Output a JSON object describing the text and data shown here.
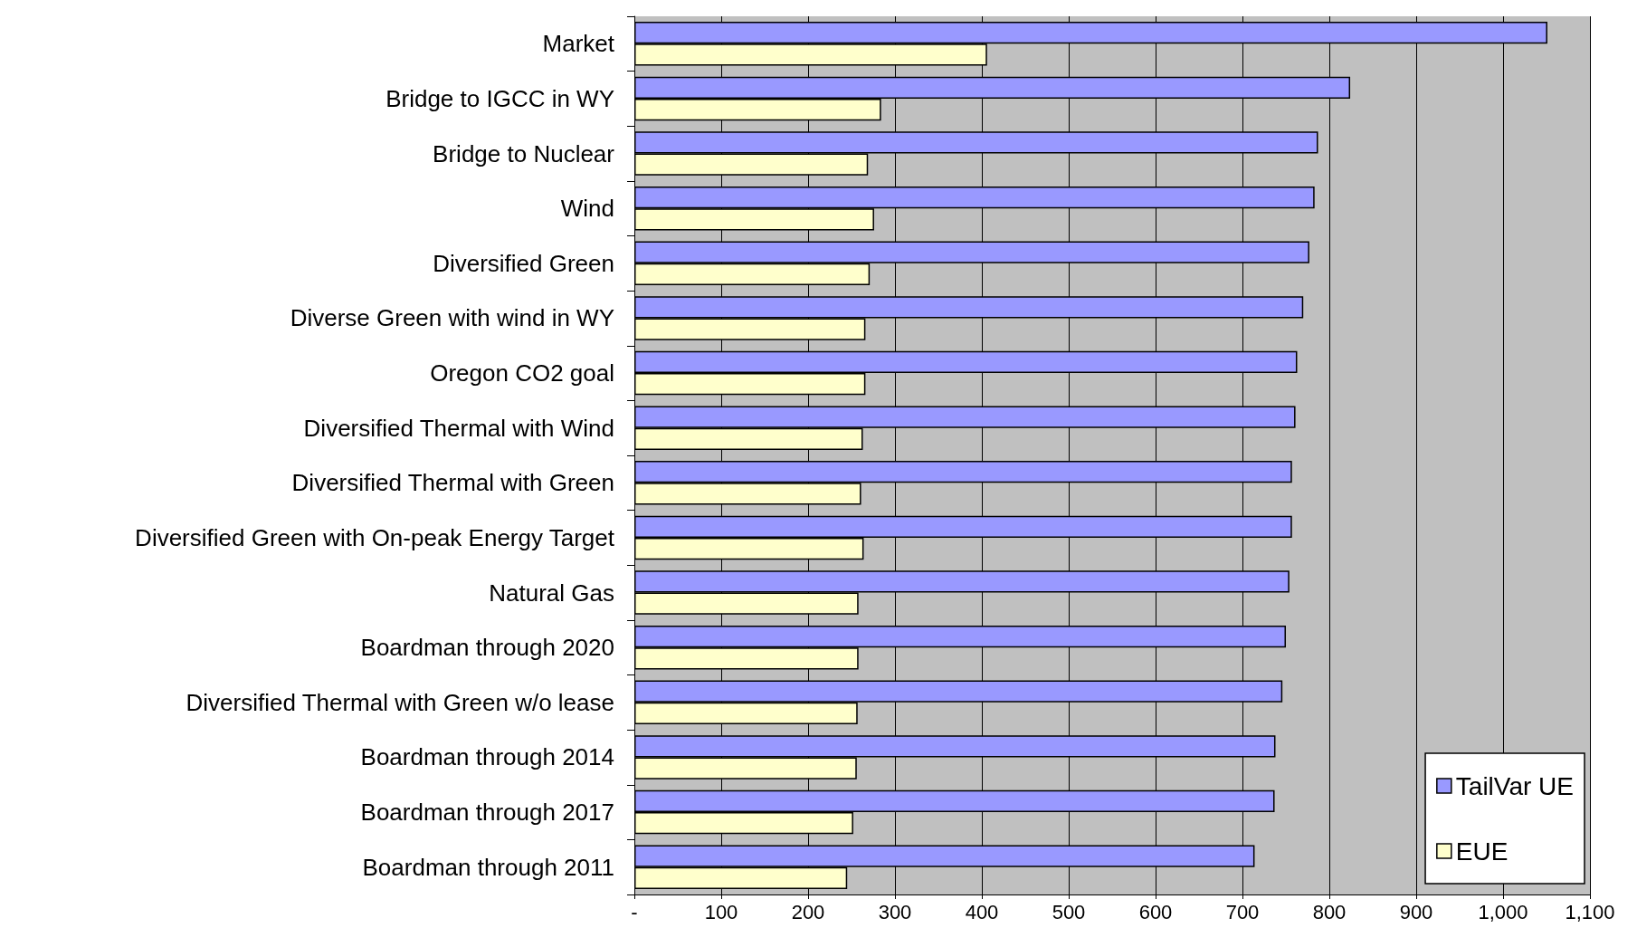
{
  "chart_data": {
    "type": "bar",
    "orientation": "horizontal",
    "categories": [
      "Market",
      "Bridge to IGCC in WY",
      "Bridge to Nuclear",
      "Wind",
      "Diversified Green",
      "Diverse Green with wind in WY",
      "Oregon CO2 goal",
      "Diversified Thermal with Wind",
      "Diversified Thermal with Green",
      "Diversified Green with On-peak Energy Target",
      "Natural Gas",
      "Boardman through 2020",
      "Diversified Thermal with Green w/o lease",
      "Boardman through 2014",
      "Boardman through 2017",
      "Boardman through 2011"
    ],
    "series": [
      {
        "name": "TailVar UE",
        "color": "#9999ff",
        "values": [
          1051,
          824,
          787,
          783,
          777,
          770,
          763,
          761,
          757,
          757,
          754,
          750,
          746,
          738,
          737,
          714
        ]
      },
      {
        "name": "EUE",
        "color": "#ffffcc",
        "values": [
          406,
          284,
          269,
          276,
          271,
          266,
          266,
          263,
          261,
          264,
          258,
          258,
          257,
          256,
          252,
          245
        ]
      }
    ],
    "xlim": [
      0,
      1100
    ],
    "xticks": [
      {
        "value": 0,
        "label": "-"
      },
      100,
      200,
      300,
      400,
      500,
      600,
      700,
      800,
      900,
      {
        "value": 1000,
        "label": "1,000"
      },
      {
        "value": 1100,
        "label": "1,100"
      }
    ],
    "grid": "x",
    "legend": "bottom right"
  }
}
